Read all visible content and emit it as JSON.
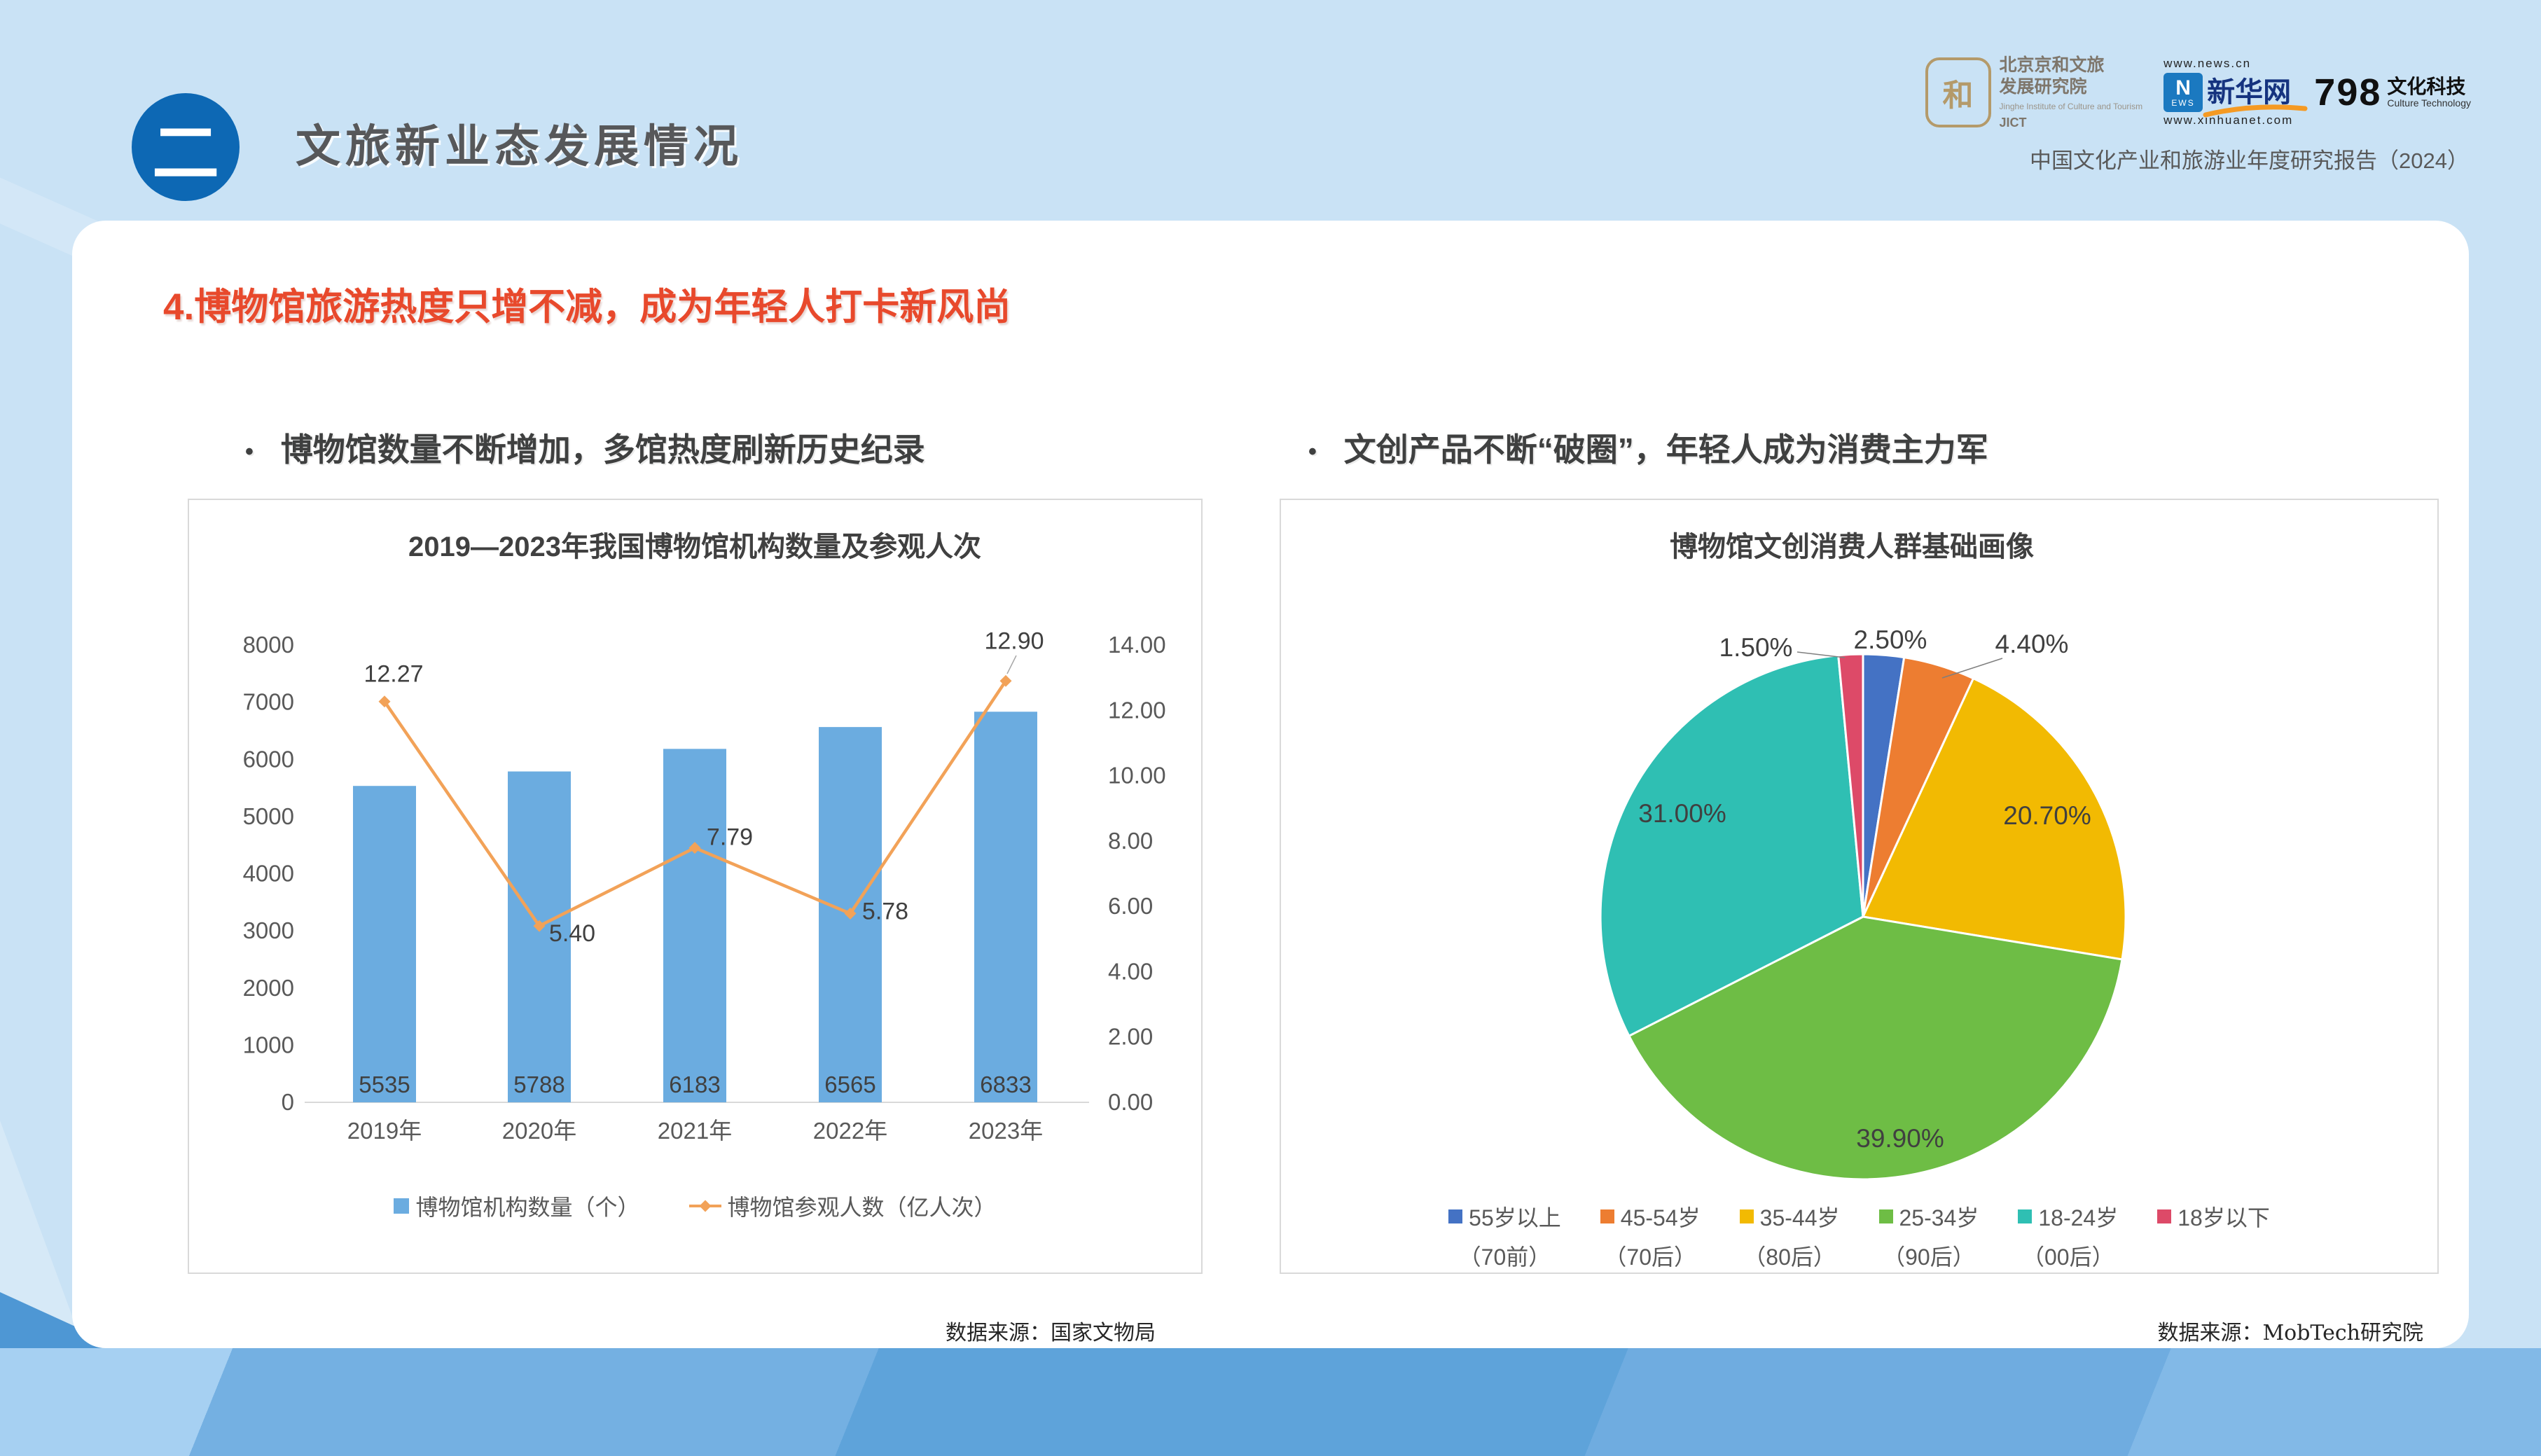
{
  "header": {
    "badge": "二",
    "title": "文旅新业态发展情况",
    "report_line": "中国文化产业和旅游业年度研究报告（2024）"
  },
  "logos": {
    "jict": {
      "seal": "和",
      "name_line1": "北京京和文旅",
      "name_line2": "发展研究院",
      "sub": "Jinghe Institute of Culture and Tourism",
      "abbr": "JICT"
    },
    "xinhua": {
      "top_url": "www.news.cn",
      "n": "N",
      "ews": "EWS",
      "name": "新华网",
      "bottom_url": "www.xinhuanet.com"
    },
    "p798": {
      "num": "798",
      "name": "文化科技",
      "sub": "Culture Technology"
    }
  },
  "section": {
    "heading": "4.博物馆旅游热度只增不减，成为年轻人打卡新风尚",
    "bullet_glyph": "•",
    "bullet_left": "博物馆数量不断增加，多馆热度刷新历史纪录",
    "bullet_right": "文创产品不断“破圈”，年轻人成为消费主力军"
  },
  "sources": {
    "left": "数据来源：国家文物局",
    "right": "数据来源：MobTech研究院"
  },
  "chart_data": [
    {
      "type": "bar",
      "subtype": "combo-bar-line",
      "title": "2019—2023年我国博物馆机构数量及参观人次",
      "categories": [
        "2019年",
        "2020年",
        "2021年",
        "2022年",
        "2023年"
      ],
      "series": [
        {
          "name": "博物馆机构数量（个）",
          "chart": "bar",
          "axis": "left",
          "color": "#6BACE0",
          "values": [
            5535,
            5788,
            6183,
            6565,
            6833
          ],
          "labels": [
            "5535",
            "5788",
            "6183",
            "6565",
            "6833"
          ]
        },
        {
          "name": "博物馆参观人数（亿人次）",
          "chart": "line",
          "axis": "right",
          "color": "#F2A258",
          "values": [
            12.27,
            5.4,
            7.79,
            5.78,
            12.9
          ],
          "labels": [
            "12.27",
            "5.40",
            "7.79",
            "5.78",
            "12.90"
          ]
        }
      ],
      "axes": {
        "left": {
          "min": 0,
          "max": 8000,
          "step": 1000,
          "ticks": [
            "8000",
            "7000",
            "6000",
            "5000",
            "4000",
            "3000",
            "2000",
            "1000",
            "0"
          ]
        },
        "right": {
          "min": 0,
          "max": 14,
          "step": 2,
          "ticks": [
            "14.00",
            "12.00",
            "10.00",
            "8.00",
            "6.00",
            "4.00",
            "2.00",
            "0.00"
          ]
        }
      },
      "grid": false,
      "legend_position": "bottom"
    },
    {
      "type": "pie",
      "title": "博物馆文创消费人群基础画像",
      "start_angle_deg": 0,
      "clockwise": true,
      "legend_position": "bottom",
      "slices": [
        {
          "label": "55岁以上",
          "sub": "（70前）",
          "value": 2.5,
          "display": "2.50%",
          "color": "#4472C4"
        },
        {
          "label": "45-54岁",
          "sub": "（70后）",
          "value": 4.4,
          "display": "4.40%",
          "color": "#ED7D31"
        },
        {
          "label": "35-44岁",
          "sub": "（80后）",
          "value": 20.7,
          "display": "20.70%",
          "color": "#F2BA02"
        },
        {
          "label": "25-34岁",
          "sub": "（90后）",
          "value": 39.9,
          "display": "39.90%",
          "color": "#6EBD45"
        },
        {
          "label": "18-24岁",
          "sub": "（00后）",
          "value": 31.0,
          "display": "31.00%",
          "color": "#2FBFB3"
        },
        {
          "label": "18岁以下",
          "sub": "",
          "value": 1.5,
          "display": "1.50%",
          "color": "#DD4A68"
        }
      ]
    }
  ]
}
